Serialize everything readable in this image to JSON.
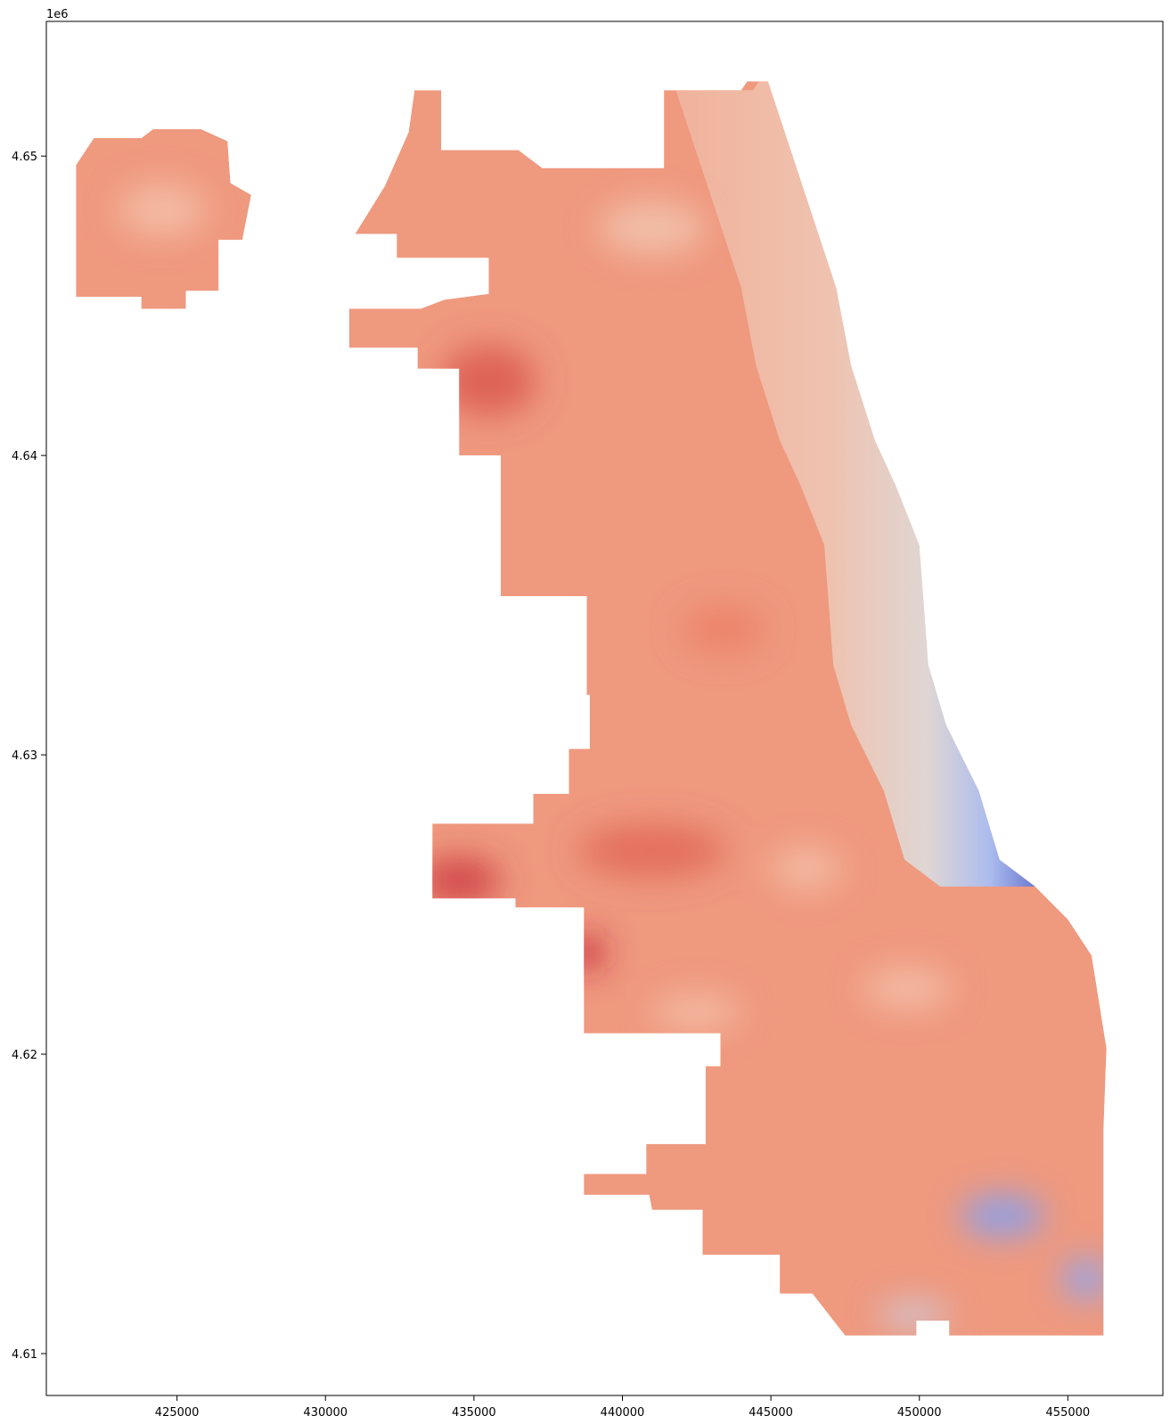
{
  "chart_data": {
    "type": "heatmap",
    "title": "",
    "xlabel": "",
    "ylabel": "",
    "colormap": "coolwarm",
    "colormap_stops": [
      "#3b4cc0",
      "#7396f5",
      "#b0cbfc",
      "#dddddd",
      "#f6bfa6",
      "#ea7b60",
      "#b40426"
    ],
    "y_offset_label": "1e6",
    "xlim": [
      420600,
      458200
    ],
    "ylim": [
      4608600,
      4654500
    ],
    "x_ticks": [
      425000,
      430000,
      435000,
      440000,
      445000,
      450000,
      455000
    ],
    "x_tick_labels": [
      "425000",
      "430000",
      "435000",
      "440000",
      "445000",
      "450000",
      "455000"
    ],
    "y_ticks": [
      4610000,
      4620000,
      4630000,
      4640000,
      4650000
    ],
    "y_tick_labels": [
      "4.61",
      "4.62",
      "4.63",
      "4.64",
      "4.65"
    ],
    "regions": [
      {
        "name": "main",
        "outline": [
          [
            433000,
            4652200
          ],
          [
            433900,
            4652200
          ],
          [
            433900,
            4650200
          ],
          [
            436500,
            4650200
          ],
          [
            437300,
            4649600
          ],
          [
            441400,
            4649600
          ],
          [
            441400,
            4652200
          ],
          [
            444000,
            4652200
          ],
          [
            444200,
            4652500
          ],
          [
            444900,
            4652500
          ],
          [
            446200,
            4648600
          ],
          [
            447200,
            4645600
          ],
          [
            447700,
            4643000
          ],
          [
            448500,
            4640500
          ],
          [
            449200,
            4639000
          ],
          [
            450000,
            4637000
          ],
          [
            450300,
            4633000
          ],
          [
            450900,
            4631000
          ],
          [
            452000,
            4628800
          ],
          [
            452700,
            4626500
          ],
          [
            453900,
            4625600
          ],
          [
            455000,
            4624500
          ],
          [
            455800,
            4623300
          ],
          [
            456300,
            4620200
          ],
          [
            456200,
            4617500
          ],
          [
            456200,
            4610600
          ],
          [
            451000,
            4610600
          ],
          [
            451000,
            4611100
          ],
          [
            449900,
            4611100
          ],
          [
            449900,
            4610600
          ],
          [
            447500,
            4610600
          ],
          [
            446400,
            4612000
          ],
          [
            445300,
            4612000
          ],
          [
            445300,
            4613300
          ],
          [
            442700,
            4613300
          ],
          [
            442700,
            4614800
          ],
          [
            441000,
            4614800
          ],
          [
            440900,
            4615300
          ],
          [
            438700,
            4615300
          ],
          [
            438700,
            4616000
          ],
          [
            440800,
            4616000
          ],
          [
            440800,
            4617000
          ],
          [
            442800,
            4617000
          ],
          [
            442800,
            4619600
          ],
          [
            443300,
            4619600
          ],
          [
            443300,
            4620700
          ],
          [
            438700,
            4620700
          ],
          [
            438700,
            4624900
          ],
          [
            436400,
            4624900
          ],
          [
            436400,
            4625200
          ],
          [
            433600,
            4625200
          ],
          [
            433600,
            4627700
          ],
          [
            437000,
            4627700
          ],
          [
            437000,
            4628700
          ],
          [
            438200,
            4628700
          ],
          [
            438200,
            4630200
          ],
          [
            438900,
            4630200
          ],
          [
            438900,
            4632000
          ],
          [
            438800,
            4632000
          ],
          [
            438800,
            4635300
          ],
          [
            435900,
            4635300
          ],
          [
            435900,
            4640000
          ],
          [
            434500,
            4640000
          ],
          [
            434500,
            4642900
          ],
          [
            433100,
            4642900
          ],
          [
            433100,
            4643600
          ],
          [
            430800,
            4643600
          ],
          [
            430800,
            4644900
          ],
          [
            433200,
            4644900
          ],
          [
            434000,
            4645200
          ],
          [
            435500,
            4645400
          ],
          [
            435500,
            4646600
          ],
          [
            433500,
            4646600
          ],
          [
            432400,
            4646600
          ],
          [
            432400,
            4647400
          ],
          [
            431000,
            4647400
          ],
          [
            432000,
            4649000
          ],
          [
            432800,
            4650800
          ]
        ]
      },
      {
        "name": "ohare",
        "outline": [
          [
            421600,
            4649700
          ],
          [
            422200,
            4650600
          ],
          [
            423800,
            4650600
          ],
          [
            424200,
            4650900
          ],
          [
            425800,
            4650900
          ],
          [
            426700,
            4650500
          ],
          [
            426800,
            4649100
          ],
          [
            427500,
            4648700
          ],
          [
            427200,
            4647200
          ],
          [
            426400,
            4647200
          ],
          [
            426400,
            4645500
          ],
          [
            425300,
            4645500
          ],
          [
            425300,
            4644900
          ],
          [
            423800,
            4644900
          ],
          [
            423800,
            4645300
          ],
          [
            421600,
            4645300
          ]
        ]
      }
    ],
    "hotspots": [
      {
        "x": 435500,
        "y": 4642500,
        "value": 0.88,
        "rx": 1600,
        "ry": 1200
      },
      {
        "x": 441000,
        "y": 4626800,
        "value": 0.86,
        "rx": 2500,
        "ry": 900
      },
      {
        "x": 434500,
        "y": 4625800,
        "value": 0.92,
        "rx": 1400,
        "ry": 800
      },
      {
        "x": 438800,
        "y": 4623400,
        "value": 0.96,
        "rx": 600,
        "ry": 600
      },
      {
        "x": 443400,
        "y": 4634200,
        "value": 0.82,
        "rx": 1400,
        "ry": 800
      },
      {
        "x": 446200,
        "y": 4626200,
        "value": 0.66,
        "rx": 1200,
        "ry": 700
      },
      {
        "x": 449600,
        "y": 4622200,
        "value": 0.66,
        "rx": 1500,
        "ry": 700
      },
      {
        "x": 442500,
        "y": 4621400,
        "value": 0.66,
        "rx": 1500,
        "ry": 600
      },
      {
        "x": 441000,
        "y": 4647600,
        "value": 0.64,
        "rx": 1800,
        "ry": 900
      },
      {
        "x": 424500,
        "y": 4648200,
        "value": 0.66,
        "rx": 1500,
        "ry": 900
      },
      {
        "x": 452800,
        "y": 4614600,
        "value": 0.2,
        "rx": 1400,
        "ry": 700
      },
      {
        "x": 455600,
        "y": 4612500,
        "value": 0.22,
        "rx": 800,
        "ry": 700
      },
      {
        "x": 449800,
        "y": 4611300,
        "value": 0.42,
        "rx": 1200,
        "ry": 400
      }
    ],
    "shore_gradient": [
      {
        "offset": 0,
        "value": 0.72
      },
      {
        "offset": 0.55,
        "value": 0.62
      },
      {
        "offset": 0.75,
        "value": 0.5
      },
      {
        "offset": 0.88,
        "value": 0.3
      },
      {
        "offset": 1,
        "value": 0.05
      }
    ]
  }
}
